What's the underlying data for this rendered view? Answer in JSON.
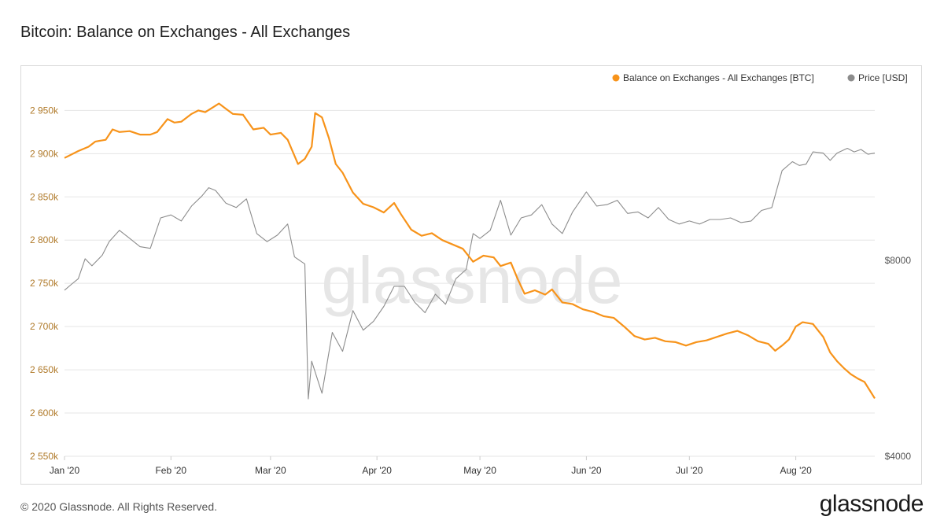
{
  "title": "Bitcoin: Balance on Exchanges - All Exchanges",
  "footer": "© 2020 Glassnode. All Rights Reserved.",
  "brand": "glassnode",
  "watermark": "glassnode",
  "colors": {
    "balance": "#f7931a",
    "price": "#8c8c8c",
    "grid": "#e5e5e5",
    "left_tick": "#b07a2a"
  },
  "chart_data": {
    "type": "line",
    "legend_placement": "top-right",
    "grid": true,
    "x_range": [
      "2020-01-01",
      "2020-08-24"
    ],
    "x_ticks": [
      {
        "date": "2020-01-01",
        "label": "Jan '20"
      },
      {
        "date": "2020-02-01",
        "label": "Feb '20"
      },
      {
        "date": "2020-03-01",
        "label": "Mar '20"
      },
      {
        "date": "2020-04-01",
        "label": "Apr '20"
      },
      {
        "date": "2020-05-01",
        "label": "May '20"
      },
      {
        "date": "2020-06-01",
        "label": "Jun '20"
      },
      {
        "date": "2020-07-01",
        "label": "Jul '20"
      },
      {
        "date": "2020-08-01",
        "label": "Aug '20"
      }
    ],
    "y_left": {
      "range": [
        2550000,
        2984000
      ],
      "ticks": [
        {
          "value": 2550000,
          "label": "2 550k"
        },
        {
          "value": 2600000,
          "label": "2 600k"
        },
        {
          "value": 2650000,
          "label": "2 650k"
        },
        {
          "value": 2700000,
          "label": "2 700k"
        },
        {
          "value": 2750000,
          "label": "2 750k"
        },
        {
          "value": 2800000,
          "label": "2 800k"
        },
        {
          "value": 2850000,
          "label": "2 850k"
        },
        {
          "value": 2900000,
          "label": "2 900k"
        },
        {
          "value": 2950000,
          "label": "2 950k"
        }
      ]
    },
    "y_right": {
      "scale": "log",
      "range": [
        4000,
        15100
      ],
      "ticks": [
        {
          "value": 4000,
          "label": "$4000"
        },
        {
          "value": 8000,
          "label": "$8000"
        }
      ]
    },
    "series": [
      {
        "name": "Balance on Exchanges - All Exchanges [BTC]",
        "axis": "left",
        "points": [
          [
            "2020-01-01",
            2895000
          ],
          [
            "2020-01-05",
            2903000
          ],
          [
            "2020-01-08",
            2908000
          ],
          [
            "2020-01-10",
            2914000
          ],
          [
            "2020-01-13",
            2916000
          ],
          [
            "2020-01-15",
            2928000
          ],
          [
            "2020-01-17",
            2925000
          ],
          [
            "2020-01-20",
            2926000
          ],
          [
            "2020-01-23",
            2922000
          ],
          [
            "2020-01-26",
            2922000
          ],
          [
            "2020-01-28",
            2925000
          ],
          [
            "2020-01-31",
            2940000
          ],
          [
            "2020-02-02",
            2936000
          ],
          [
            "2020-02-04",
            2937000
          ],
          [
            "2020-02-07",
            2946000
          ],
          [
            "2020-02-09",
            2950000
          ],
          [
            "2020-02-11",
            2948000
          ],
          [
            "2020-02-13",
            2953000
          ],
          [
            "2020-02-15",
            2958000
          ],
          [
            "2020-02-17",
            2952000
          ],
          [
            "2020-02-19",
            2946000
          ],
          [
            "2020-02-22",
            2945000
          ],
          [
            "2020-02-25",
            2928000
          ],
          [
            "2020-02-28",
            2930000
          ],
          [
            "2020-03-01",
            2922000
          ],
          [
            "2020-03-04",
            2924000
          ],
          [
            "2020-03-06",
            2916000
          ],
          [
            "2020-03-09",
            2888000
          ],
          [
            "2020-03-11",
            2894000
          ],
          [
            "2020-03-13",
            2908000
          ],
          [
            "2020-03-14",
            2947000
          ],
          [
            "2020-03-16",
            2942000
          ],
          [
            "2020-03-18",
            2918000
          ],
          [
            "2020-03-20",
            2888000
          ],
          [
            "2020-03-22",
            2878000
          ],
          [
            "2020-03-25",
            2855000
          ],
          [
            "2020-03-28",
            2842000
          ],
          [
            "2020-03-31",
            2838000
          ],
          [
            "2020-04-03",
            2832000
          ],
          [
            "2020-04-06",
            2843000
          ],
          [
            "2020-04-08",
            2830000
          ],
          [
            "2020-04-11",
            2812000
          ],
          [
            "2020-04-14",
            2805000
          ],
          [
            "2020-04-17",
            2808000
          ],
          [
            "2020-04-20",
            2800000
          ],
          [
            "2020-04-23",
            2795000
          ],
          [
            "2020-04-26",
            2790000
          ],
          [
            "2020-04-29",
            2775000
          ],
          [
            "2020-05-02",
            2782000
          ],
          [
            "2020-05-05",
            2780000
          ],
          [
            "2020-05-07",
            2770000
          ],
          [
            "2020-05-10",
            2774000
          ],
          [
            "2020-05-12",
            2755000
          ],
          [
            "2020-05-14",
            2738000
          ],
          [
            "2020-05-17",
            2742000
          ],
          [
            "2020-05-20",
            2737000
          ],
          [
            "2020-05-22",
            2743000
          ],
          [
            "2020-05-25",
            2728000
          ],
          [
            "2020-05-28",
            2726000
          ],
          [
            "2020-05-31",
            2720000
          ],
          [
            "2020-06-03",
            2717000
          ],
          [
            "2020-06-06",
            2712000
          ],
          [
            "2020-06-09",
            2710000
          ],
          [
            "2020-06-12",
            2700000
          ],
          [
            "2020-06-15",
            2689000
          ],
          [
            "2020-06-18",
            2685000
          ],
          [
            "2020-06-21",
            2687000
          ],
          [
            "2020-06-24",
            2683000
          ],
          [
            "2020-06-27",
            2682000
          ],
          [
            "2020-06-30",
            2678000
          ],
          [
            "2020-07-03",
            2682000
          ],
          [
            "2020-07-06",
            2684000
          ],
          [
            "2020-07-09",
            2688000
          ],
          [
            "2020-07-12",
            2692000
          ],
          [
            "2020-07-15",
            2695000
          ],
          [
            "2020-07-18",
            2690000
          ],
          [
            "2020-07-21",
            2683000
          ],
          [
            "2020-07-24",
            2680000
          ],
          [
            "2020-07-26",
            2672000
          ],
          [
            "2020-07-28",
            2678000
          ],
          [
            "2020-07-30",
            2685000
          ],
          [
            "2020-08-01",
            2700000
          ],
          [
            "2020-08-03",
            2705000
          ],
          [
            "2020-08-06",
            2703000
          ],
          [
            "2020-08-09",
            2688000
          ],
          [
            "2020-08-11",
            2670000
          ],
          [
            "2020-08-13",
            2660000
          ],
          [
            "2020-08-15",
            2652000
          ],
          [
            "2020-08-17",
            2645000
          ],
          [
            "2020-08-19",
            2640000
          ],
          [
            "2020-08-21",
            2636000
          ],
          [
            "2020-08-24",
            2617000
          ]
        ]
      },
      {
        "name": "Price [USD]",
        "axis": "right",
        "points": [
          [
            "2020-01-01",
            7200
          ],
          [
            "2020-01-03",
            7350
          ],
          [
            "2020-01-05",
            7500
          ],
          [
            "2020-01-07",
            8050
          ],
          [
            "2020-01-09",
            7850
          ],
          [
            "2020-01-12",
            8150
          ],
          [
            "2020-01-14",
            8550
          ],
          [
            "2020-01-17",
            8900
          ],
          [
            "2020-01-20",
            8650
          ],
          [
            "2020-01-23",
            8400
          ],
          [
            "2020-01-26",
            8350
          ],
          [
            "2020-01-29",
            9300
          ],
          [
            "2020-02-01",
            9400
          ],
          [
            "2020-02-04",
            9200
          ],
          [
            "2020-02-07",
            9700
          ],
          [
            "2020-02-10",
            10050
          ],
          [
            "2020-02-12",
            10350
          ],
          [
            "2020-02-14",
            10250
          ],
          [
            "2020-02-17",
            9800
          ],
          [
            "2020-02-20",
            9650
          ],
          [
            "2020-02-23",
            9950
          ],
          [
            "2020-02-26",
            8800
          ],
          [
            "2020-02-29",
            8550
          ],
          [
            "2020-03-03",
            8750
          ],
          [
            "2020-03-06",
            9100
          ],
          [
            "2020-03-08",
            8100
          ],
          [
            "2020-03-11",
            7900
          ],
          [
            "2020-03-12",
            4900
          ],
          [
            "2020-03-13",
            5600
          ],
          [
            "2020-03-16",
            5000
          ],
          [
            "2020-03-19",
            6200
          ],
          [
            "2020-03-22",
            5800
          ],
          [
            "2020-03-25",
            6700
          ],
          [
            "2020-03-28",
            6250
          ],
          [
            "2020-03-31",
            6450
          ],
          [
            "2020-04-03",
            6800
          ],
          [
            "2020-04-06",
            7300
          ],
          [
            "2020-04-09",
            7300
          ],
          [
            "2020-04-12",
            6900
          ],
          [
            "2020-04-15",
            6650
          ],
          [
            "2020-04-18",
            7100
          ],
          [
            "2020-04-21",
            6850
          ],
          [
            "2020-04-24",
            7500
          ],
          [
            "2020-04-27",
            7750
          ],
          [
            "2020-04-29",
            8800
          ],
          [
            "2020-05-01",
            8650
          ],
          [
            "2020-05-04",
            8900
          ],
          [
            "2020-05-07",
            9900
          ],
          [
            "2020-05-10",
            8750
          ],
          [
            "2020-05-13",
            9300
          ],
          [
            "2020-05-16",
            9400
          ],
          [
            "2020-05-19",
            9750
          ],
          [
            "2020-05-22",
            9100
          ],
          [
            "2020-05-25",
            8800
          ],
          [
            "2020-05-28",
            9500
          ],
          [
            "2020-06-01",
            10200
          ],
          [
            "2020-06-04",
            9700
          ],
          [
            "2020-06-07",
            9750
          ],
          [
            "2020-06-10",
            9900
          ],
          [
            "2020-06-13",
            9450
          ],
          [
            "2020-06-16",
            9500
          ],
          [
            "2020-06-19",
            9300
          ],
          [
            "2020-06-22",
            9650
          ],
          [
            "2020-06-25",
            9250
          ],
          [
            "2020-06-28",
            9100
          ],
          [
            "2020-07-01",
            9200
          ],
          [
            "2020-07-04",
            9100
          ],
          [
            "2020-07-07",
            9250
          ],
          [
            "2020-07-10",
            9250
          ],
          [
            "2020-07-13",
            9300
          ],
          [
            "2020-07-16",
            9150
          ],
          [
            "2020-07-19",
            9200
          ],
          [
            "2020-07-22",
            9550
          ],
          [
            "2020-07-25",
            9650
          ],
          [
            "2020-07-28",
            11000
          ],
          [
            "2020-07-31",
            11350
          ],
          [
            "2020-08-02",
            11200
          ],
          [
            "2020-08-04",
            11250
          ],
          [
            "2020-08-06",
            11750
          ],
          [
            "2020-08-09",
            11700
          ],
          [
            "2020-08-11",
            11400
          ],
          [
            "2020-08-13",
            11700
          ],
          [
            "2020-08-16",
            11900
          ],
          [
            "2020-08-18",
            11750
          ],
          [
            "2020-08-20",
            11850
          ],
          [
            "2020-08-22",
            11650
          ],
          [
            "2020-08-24",
            11700
          ]
        ]
      }
    ]
  }
}
